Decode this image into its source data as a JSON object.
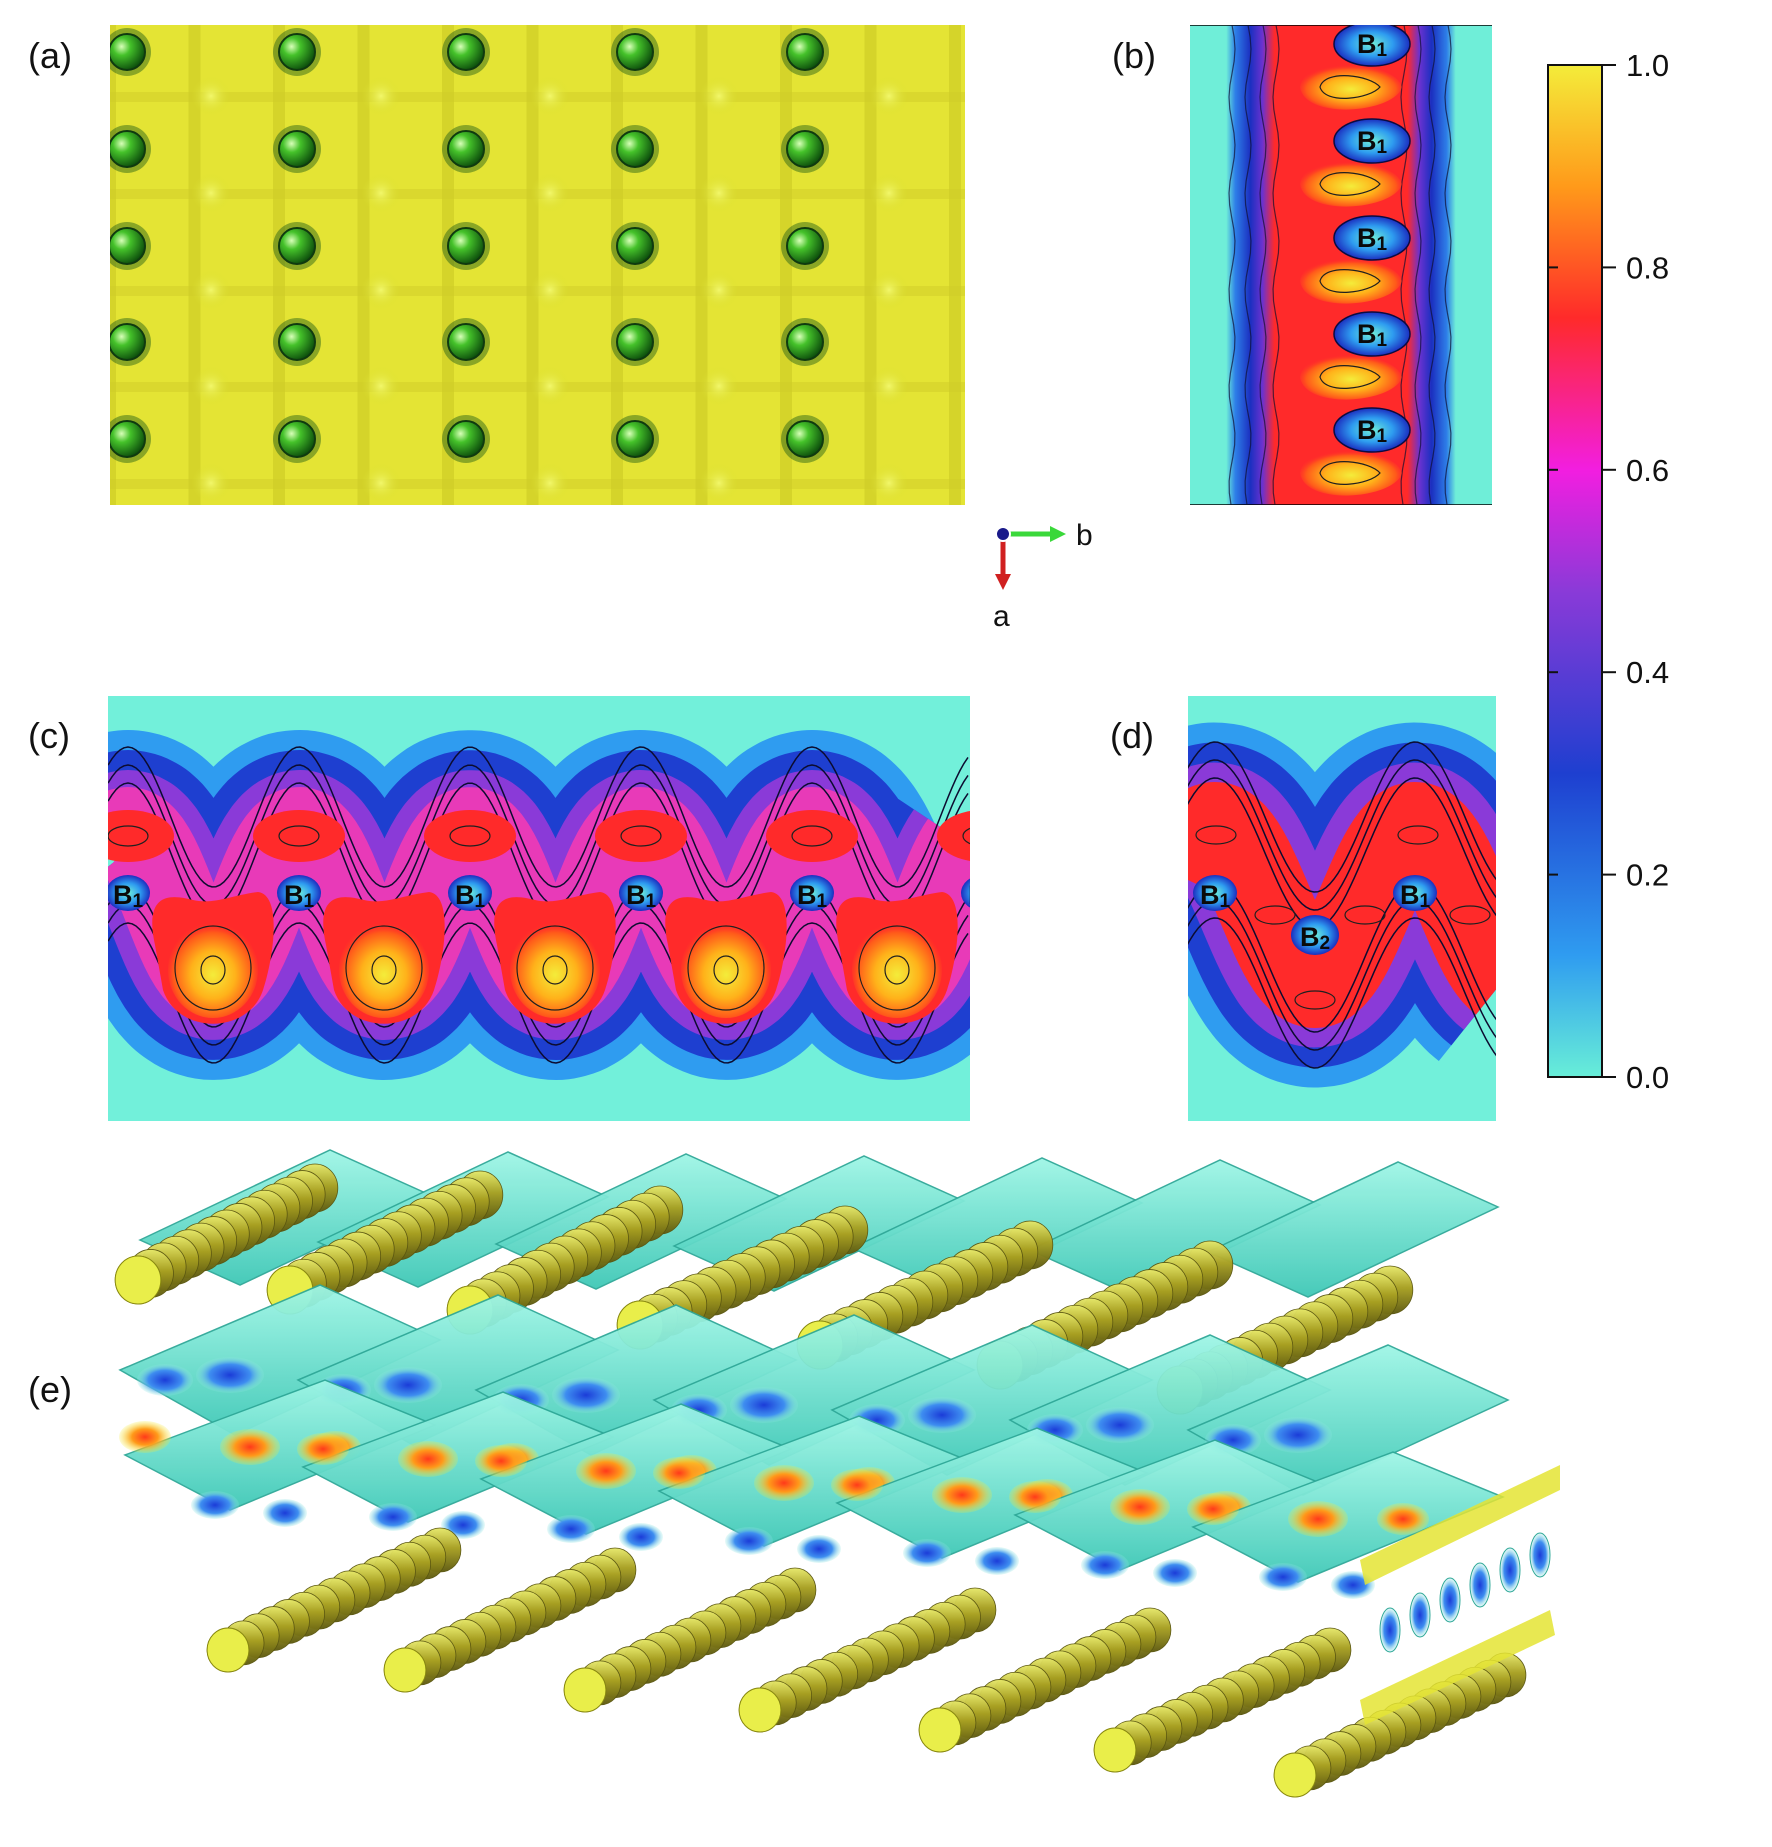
{
  "panels": [
    {
      "id": "a",
      "label": "(a)"
    },
    {
      "id": "b",
      "label": "(b)"
    },
    {
      "id": "c",
      "label": "(c)"
    },
    {
      "id": "d",
      "label": "(d)"
    },
    {
      "id": "e",
      "label": "(e)"
    }
  ],
  "atom_labels": {
    "b1": {
      "element": "B",
      "index": "1"
    },
    "b2": {
      "element": "B",
      "index": "2"
    }
  },
  "axes_indicator": {
    "horizontal": "b",
    "vertical": "a"
  },
  "colorbar": {
    "ticks": [
      "1.0",
      "0.8",
      "0.6",
      "0.4",
      "0.2",
      "0.0"
    ],
    "min": 0.0,
    "max": 1.0,
    "colors": [
      "#68eed8",
      "#2f9cf0",
      "#1e3fd0",
      "#8a3ad8",
      "#f21ee0",
      "#ff2a2a",
      "#ff9a1a",
      "#f4ec3a"
    ]
  }
}
